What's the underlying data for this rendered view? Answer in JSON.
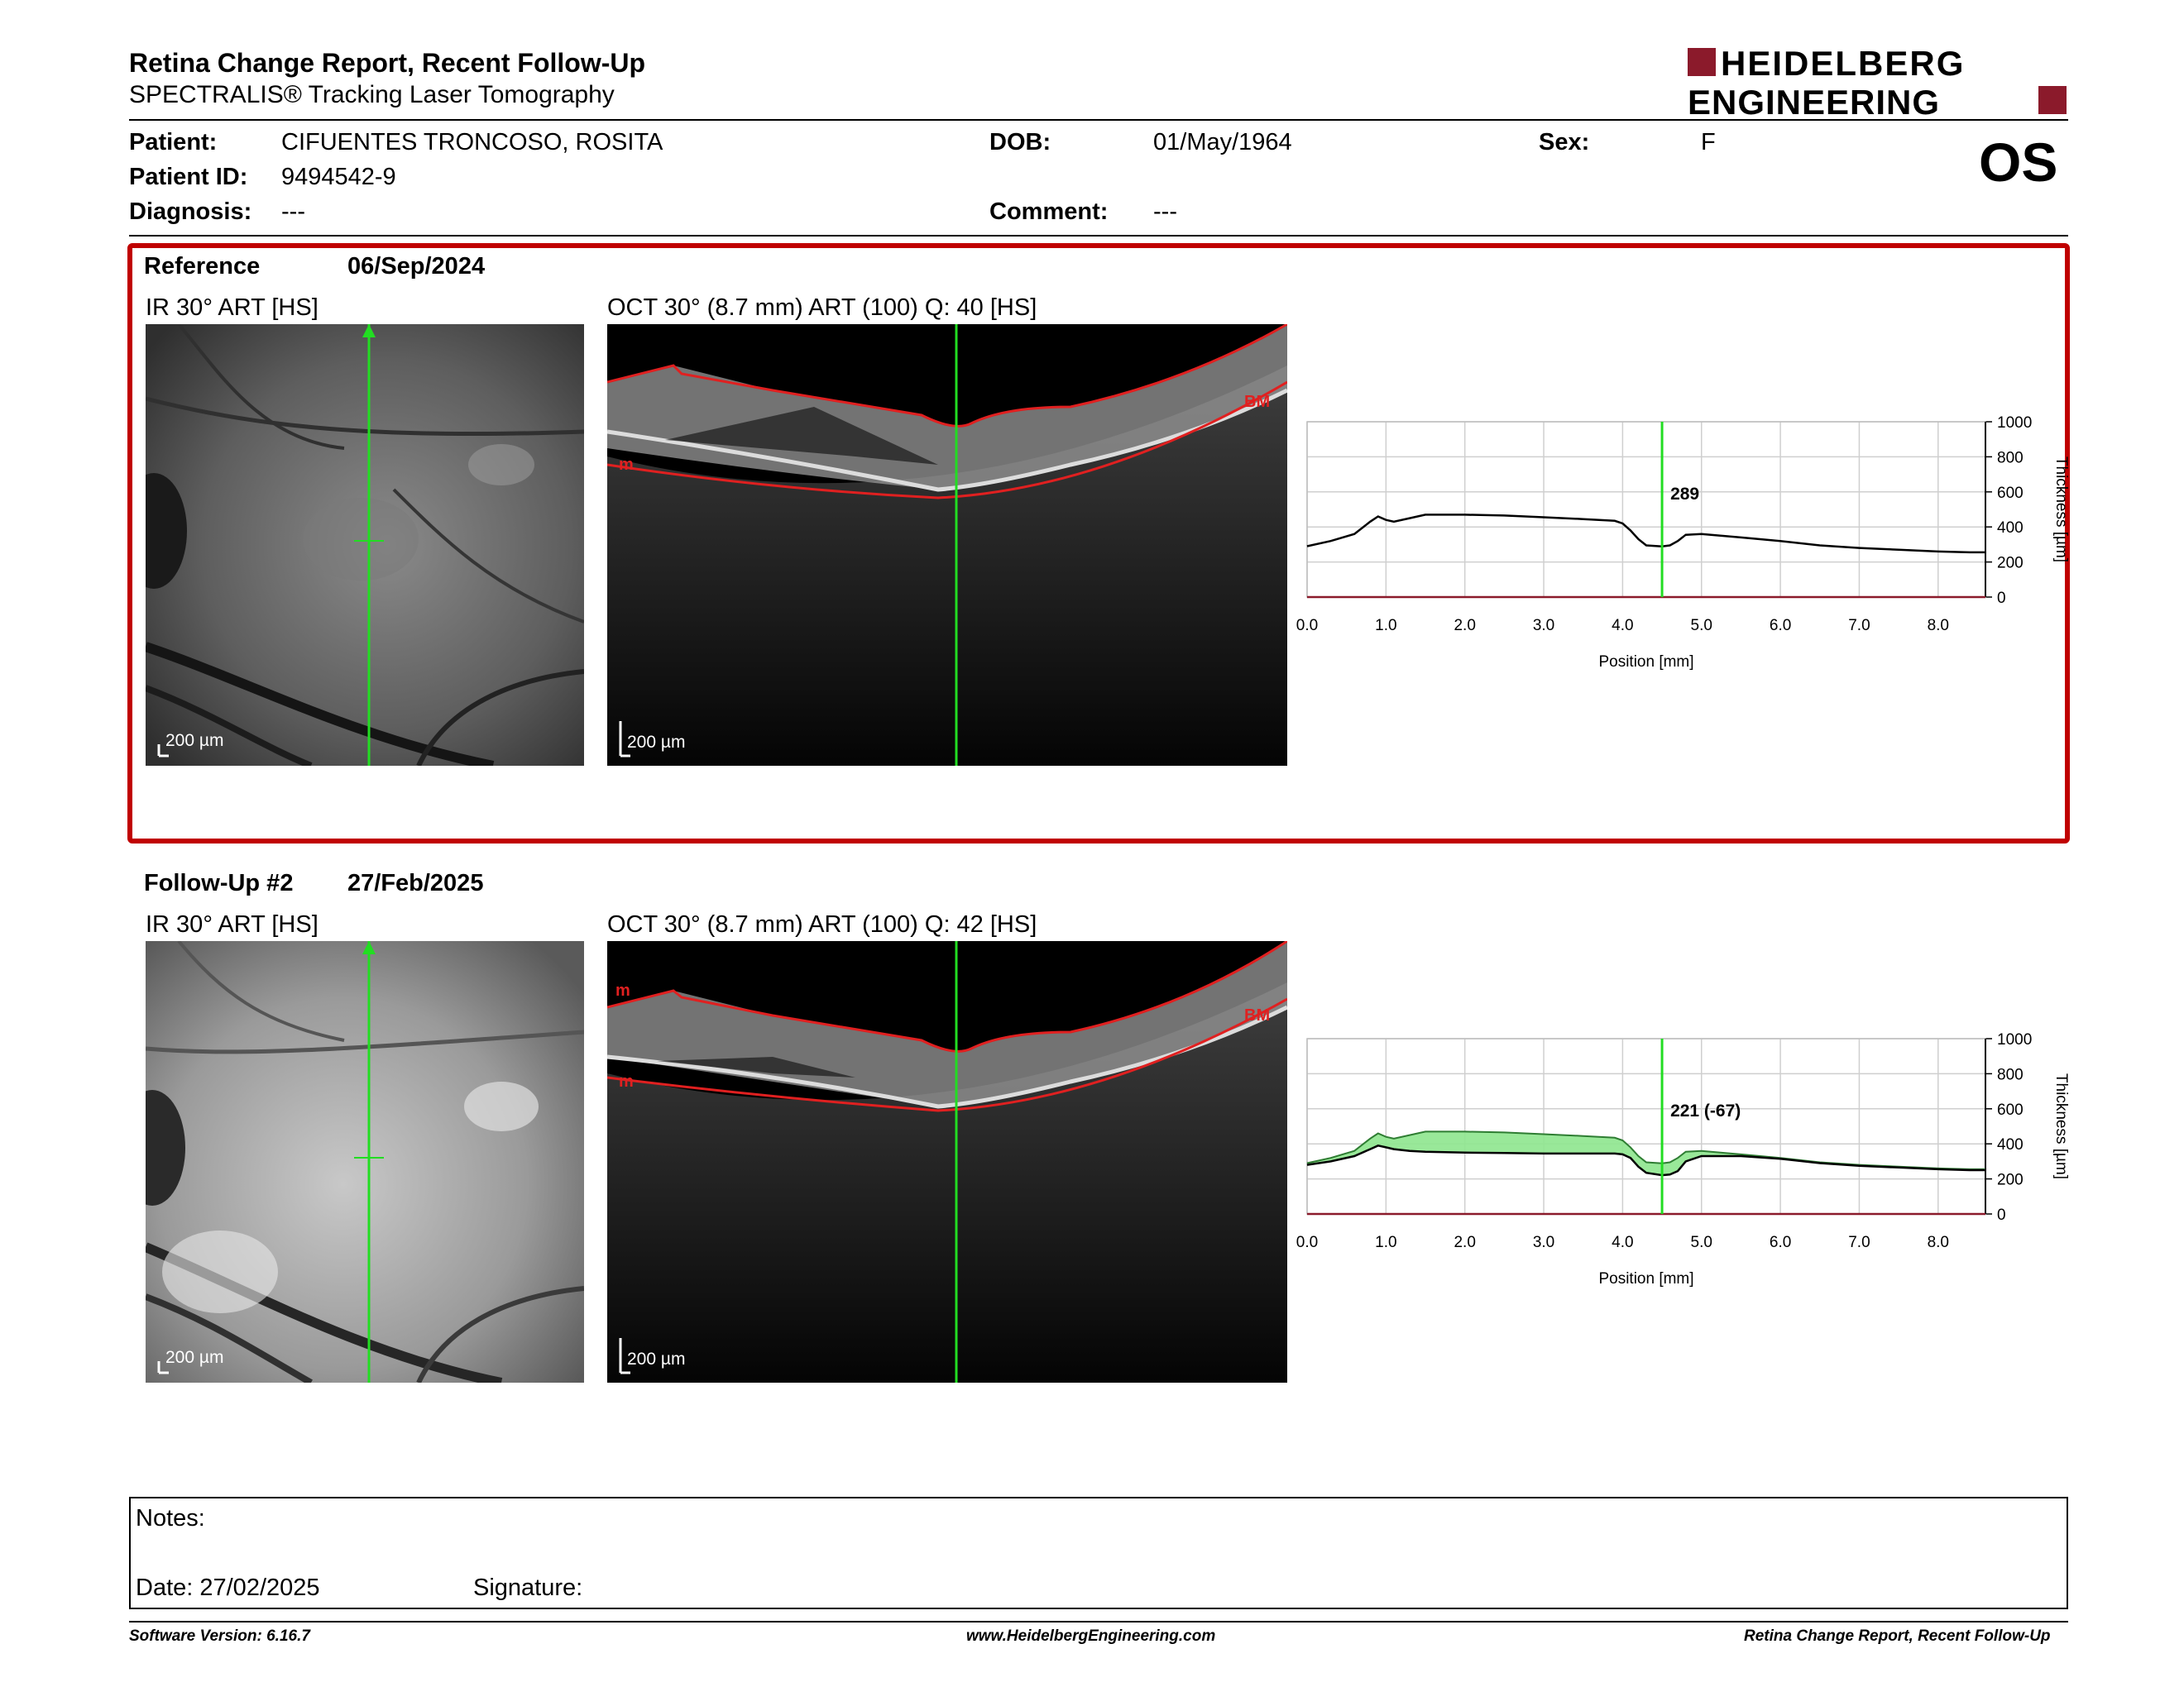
{
  "header": {
    "title": "Retina Change Report, Recent Follow-Up",
    "subtitle": "SPECTRALIS® Tracking Laser Tomography",
    "logo_line1": "HEIDELBERG",
    "logo_line2": "ENGINEERING",
    "brand_color": "#8b1a2b"
  },
  "patient": {
    "patient_label": "Patient:",
    "patient_value": "CIFUENTES TRONCOSO, ROSITA",
    "id_label": "Patient ID:",
    "id_value": "9494542-9",
    "diagnosis_label": "Diagnosis:",
    "diagnosis_value": "---",
    "dob_label": "DOB:",
    "dob_value": "01/May/1964",
    "comment_label": "Comment:",
    "comment_value": "---",
    "sex_label": "Sex:",
    "sex_value": "F",
    "eye": "OS"
  },
  "reference": {
    "label": "Reference",
    "date": "06/Sep/2024",
    "ir_caption": "IR 30° ART [HS]",
    "oct_caption": "OCT 30° (8.7 mm) ART (100) Q: 40 [HS]",
    "scale_ir": "200 µm",
    "scale_oct": "200 µm",
    "layer_top": "m",
    "layer_bottom": "BM"
  },
  "followup": {
    "label": "Follow-Up #2",
    "date": "27/Feb/2025",
    "ir_caption": "IR 30° ART [HS]",
    "oct_caption": "OCT 30° (8.7 mm) ART (100) Q: 42 [HS]",
    "scale_ir": "200 µm",
    "scale_oct": "200 µm",
    "layer_top": "m",
    "layer_bottom": "BM",
    "layer_bottom2": "m"
  },
  "notes": {
    "notes_label": "Notes:",
    "date_label": "Date: 27/02/2025",
    "signature_label": "Signature:"
  },
  "footer": {
    "left": "Software Version: 6.16.7",
    "center": "www.HeidelbergEngineering.com",
    "right": "Retina Change Report, Recent Follow-Up"
  },
  "chart_data": [
    {
      "type": "line",
      "xlabel": "Position [mm]",
      "ylabel": "Thickness [µm]",
      "xlim": [
        0,
        8.6
      ],
      "ylim": [
        0,
        1000
      ],
      "x_ticks": [
        "0.0",
        "1.0",
        "2.0",
        "3.0",
        "4.0",
        "5.0",
        "6.0",
        "7.0",
        "8.0"
      ],
      "y_ticks": [
        "0",
        "200",
        "400",
        "600",
        "800",
        "1000"
      ],
      "cursor_x": 4.5,
      "cursor_label": "289",
      "series": [
        {
          "x": [
            0.0,
            0.3,
            0.6,
            0.8,
            0.9,
            1.0,
            1.1,
            1.3,
            1.5,
            2.0,
            2.5,
            3.0,
            3.5,
            3.9,
            4.0,
            4.1,
            4.2,
            4.3,
            4.5,
            4.6,
            4.7,
            4.8,
            5.0,
            5.5,
            6.0,
            6.5,
            7.0,
            7.5,
            8.0,
            8.4,
            8.6
          ],
          "values": [
            290,
            320,
            360,
            430,
            460,
            440,
            430,
            450,
            470,
            470,
            465,
            455,
            445,
            435,
            420,
            380,
            330,
            295,
            289,
            295,
            320,
            355,
            360,
            340,
            320,
            295,
            280,
            270,
            260,
            255,
            255
          ]
        }
      ]
    },
    {
      "type": "area",
      "xlabel": "Position [mm]",
      "ylabel": "Thickness [µm]",
      "xlim": [
        0,
        8.6
      ],
      "ylim": [
        0,
        1000
      ],
      "x_ticks": [
        "0.0",
        "1.0",
        "2.0",
        "3.0",
        "4.0",
        "5.0",
        "6.0",
        "7.0",
        "8.0"
      ],
      "y_ticks": [
        "0",
        "200",
        "400",
        "600",
        "800",
        "1000"
      ],
      "cursor_x": 4.5,
      "cursor_label": "221 (-67)",
      "series": [
        {
          "x": [
            0.0,
            0.3,
            0.6,
            0.8,
            0.9,
            1.0,
            1.1,
            1.3,
            1.5,
            2.0,
            2.5,
            3.0,
            3.5,
            3.9,
            4.0,
            4.1,
            4.2,
            4.3,
            4.5,
            4.6,
            4.7,
            4.8,
            5.0,
            5.5,
            6.0,
            6.5,
            7.0,
            7.5,
            8.0,
            8.4,
            8.6
          ],
          "values": [
            290,
            320,
            360,
            430,
            460,
            440,
            430,
            450,
            470,
            470,
            465,
            455,
            445,
            435,
            420,
            380,
            330,
            295,
            289,
            295,
            320,
            355,
            360,
            340,
            320,
            295,
            280,
            270,
            260,
            255,
            255
          ]
        },
        {
          "x": [
            0.0,
            0.3,
            0.6,
            0.8,
            0.9,
            1.0,
            1.1,
            1.3,
            1.5,
            2.0,
            2.5,
            3.0,
            3.5,
            3.9,
            4.0,
            4.1,
            4.2,
            4.3,
            4.5,
            4.6,
            4.7,
            4.8,
            5.0,
            5.5,
            6.0,
            6.5,
            7.0,
            7.5,
            8.0,
            8.4,
            8.6
          ],
          "values": [
            280,
            300,
            330,
            370,
            390,
            380,
            370,
            360,
            355,
            350,
            348,
            345,
            345,
            345,
            340,
            320,
            270,
            235,
            221,
            225,
            245,
            300,
            330,
            330,
            315,
            290,
            275,
            265,
            255,
            250,
            250
          ]
        }
      ]
    }
  ]
}
